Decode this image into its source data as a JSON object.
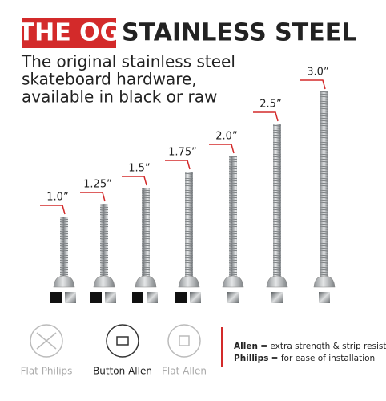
{
  "header": {
    "badge": "THE OG",
    "title": "STAINLESS STEEL"
  },
  "subtitle": [
    "The original stainless steel",
    "skateboard hardware,",
    "available in black or raw"
  ],
  "bolts": [
    {
      "label": "1.0”"
    },
    {
      "label": "1.25”"
    },
    {
      "label": "1.5”"
    },
    {
      "label": "1.75”"
    },
    {
      "label": "2.0”"
    },
    {
      "label": "2.5”"
    },
    {
      "label": "3.0”"
    }
  ],
  "head_types": [
    {
      "label": "Flat Philips"
    },
    {
      "label": "Button Allen"
    },
    {
      "label": "Flat Allen"
    }
  ],
  "legend": [
    {
      "term": "Allen",
      "text": " = extra strength & strip resistance"
    },
    {
      "term": "Phillips",
      "text": " = for ease of installation"
    }
  ]
}
